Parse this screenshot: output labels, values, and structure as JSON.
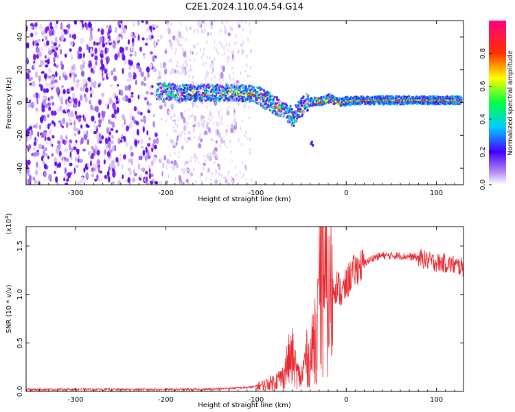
{
  "title": "C2E1.2024.110.04.54.G14",
  "colors": {
    "snr_line": "#e8282e",
    "spectrum_sparse": "#c9a6f2",
    "spectrum_dense": "#7a1ef0",
    "axis": "#000000"
  },
  "chart_data": [
    {
      "type": "heatmap",
      "xlabel": "Height of straight line (km)",
      "ylabel": "Frequency (Hz)",
      "xlim": [
        -355,
        130
      ],
      "ylim": [
        -50,
        50
      ],
      "x_ticks": [
        -300,
        -200,
        -100,
        0,
        100
      ],
      "x_tick_labels": [
        "-300",
        "-200",
        "-100",
        "0",
        "100"
      ],
      "y_ticks": [
        -40,
        -20,
        0,
        20,
        40
      ],
      "y_tick_labels": [
        "-40",
        "-20",
        "0",
        "20",
        "40"
      ],
      "colorbar": {
        "label": "Normalized spectral amplitude",
        "range": [
          0,
          1
        ],
        "ticks": [
          0,
          0.2,
          0.4,
          0.6,
          0.8
        ],
        "tick_labels": [
          "0.0",
          "0.2",
          "0.4",
          "0.6",
          "0.8"
        ],
        "colormap": "rainbow (white-purple-blue-cyan-green-yellow-red-magenta)"
      },
      "ridge": {
        "x": [
          -205,
          -180,
          -150,
          -120,
          -100,
          -85,
          -75,
          -65,
          -58,
          -50,
          -42,
          -35,
          -25,
          -18,
          -12,
          -5,
          0,
          30,
          60,
          90,
          128
        ],
        "y": [
          7,
          6,
          6,
          6,
          5,
          1,
          -3,
          -7,
          -9,
          -3,
          0,
          1,
          1,
          3,
          1,
          0,
          1,
          1.5,
          1.5,
          1.5,
          1.5
        ]
      }
    },
    {
      "type": "line",
      "xlabel": "Height of straight line (km)",
      "ylabel": "SNR (10 * v/v)",
      "ylabel_unit": "(x10^4)",
      "xlim": [
        -355,
        130
      ],
      "ylim": [
        0,
        1.7
      ],
      "x_ticks": [
        -300,
        -200,
        -100,
        0,
        100
      ],
      "x_tick_labels": [
        "-300",
        "-200",
        "-100",
        "0",
        "100"
      ],
      "y_ticks": [
        0,
        0.5,
        1.0,
        1.5
      ],
      "y_tick_labels": [
        "0.0",
        "0.5",
        "1.0",
        "1.5"
      ],
      "series": [
        {
          "x": [
            -355,
            -320,
            -280,
            -240,
            -200,
            -160,
            -130,
            -110,
            -100,
            -90,
            -80,
            -70,
            -65,
            -60,
            -55,
            -50,
            -45,
            -40,
            -35,
            -30,
            -25,
            -20,
            -15,
            -10,
            -5,
            0,
            5,
            10,
            20,
            30,
            40,
            60,
            80,
            90,
            100,
            110,
            120,
            130
          ],
          "values": [
            0.02,
            0.02,
            0.02,
            0.02,
            0.02,
            0.02,
            0.03,
            0.04,
            0.05,
            0.07,
            0.1,
            0.15,
            0.3,
            0.35,
            0.2,
            0.12,
            0.35,
            0.3,
            0.6,
            0.75,
            1.1,
            0.9,
            1.05,
            1.1,
            1.0,
            1.1,
            1.2,
            1.25,
            1.32,
            1.38,
            1.4,
            1.4,
            1.38,
            1.35,
            1.33,
            1.32,
            1.3,
            1.28
          ]
        }
      ]
    }
  ]
}
